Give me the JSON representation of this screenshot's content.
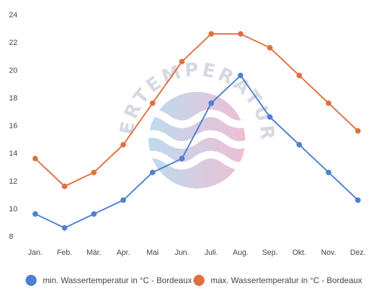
{
  "chart_data": {
    "type": "line",
    "categories": [
      "Jan.",
      "Feb.",
      "Mär.",
      "Apr.",
      "Mai",
      "Jun.",
      "Juli.",
      "Aug.",
      "Sep.",
      "Okt.",
      "Nov.",
      "Dez."
    ],
    "series": [
      {
        "name": "min. Wassertemperatur in °C - Bordeaux",
        "color": "#4f7fcf",
        "values": [
          9.6,
          8.6,
          9.6,
          10.6,
          12.6,
          13.6,
          17.6,
          19.6,
          16.6,
          14.6,
          12.6,
          10.6
        ]
      },
      {
        "name": "max. Wassertemperatur in °C - Bordeaux",
        "color": "#e0703e",
        "values": [
          13.6,
          11.6,
          12.6,
          14.6,
          17.6,
          20.6,
          22.6,
          22.6,
          21.6,
          19.6,
          17.6,
          15.6
        ]
      }
    ],
    "yticks": [
      8,
      10,
      12,
      14,
      16,
      18,
      20,
      22,
      24
    ],
    "ylim": [
      8,
      24
    ],
    "grid": false,
    "legend": "bottom",
    "title": "",
    "xlabel": "",
    "ylabel": ""
  },
  "watermark": {
    "text": "WASSERTEMPERATUR.ORG"
  }
}
